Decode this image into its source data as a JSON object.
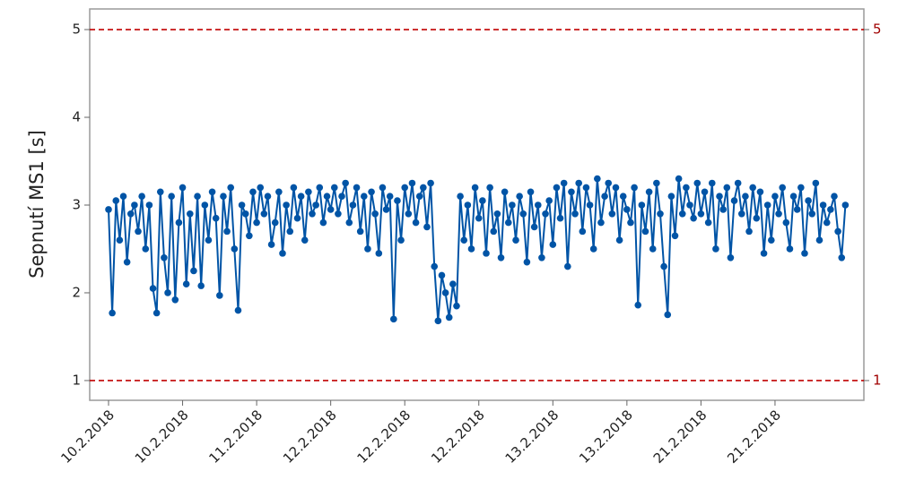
{
  "chart_data": {
    "type": "line",
    "y_label": "Sepnutí MS1 [s]",
    "color": "#0054a6",
    "ylim": [
      0.775,
      5.235
    ],
    "yticks": [
      1,
      2,
      3,
      4,
      5
    ],
    "hlines": [
      5,
      1
    ],
    "categories": [
      "10.2.2018",
      null,
      null,
      null,
      null,
      null,
      null,
      null,
      null,
      null,
      null,
      null,
      null,
      null,
      null,
      null,
      null,
      null,
      null,
      null,
      "10.2.2018",
      null,
      null,
      null,
      null,
      null,
      null,
      null,
      null,
      null,
      null,
      null,
      null,
      null,
      null,
      null,
      null,
      null,
      null,
      null,
      "11.2.2018",
      null,
      null,
      null,
      null,
      null,
      null,
      null,
      null,
      null,
      null,
      null,
      null,
      null,
      null,
      null,
      null,
      null,
      null,
      null,
      "12.2.2018",
      null,
      null,
      null,
      null,
      null,
      null,
      null,
      null,
      null,
      null,
      null,
      null,
      null,
      null,
      null,
      null,
      null,
      null,
      null,
      "12.2.2018",
      null,
      null,
      null,
      null,
      null,
      null,
      null,
      null,
      null,
      null,
      null,
      null,
      null,
      null,
      null,
      null,
      null,
      null,
      null,
      "12.2.2018",
      null,
      null,
      null,
      null,
      null,
      null,
      null,
      null,
      null,
      null,
      null,
      null,
      null,
      null,
      null,
      null,
      null,
      null,
      null,
      "13.2.2018",
      null,
      null,
      null,
      null,
      null,
      null,
      null,
      null,
      null,
      null,
      null,
      null,
      null,
      null,
      null,
      null,
      null,
      null,
      null,
      "13.2.2018",
      null,
      null,
      null,
      null,
      null,
      null,
      null,
      null,
      null,
      null,
      null,
      null,
      null,
      null,
      null,
      null,
      null,
      null,
      null,
      "21.2.2018",
      null,
      null,
      null,
      null,
      null,
      null,
      null,
      null,
      null,
      null,
      null,
      null,
      null,
      null,
      null,
      null,
      null,
      null,
      null,
      "21.2.2018",
      null,
      null,
      null,
      null,
      null,
      null,
      null,
      null,
      null,
      null,
      null,
      null,
      null,
      null,
      null,
      null,
      null,
      null,
      null
    ],
    "values": [
      2.95,
      1.77,
      3.05,
      2.6,
      3.1,
      2.35,
      2.9,
      3.0,
      2.7,
      3.1,
      2.5,
      3.0,
      2.05,
      1.77,
      3.15,
      2.4,
      2.0,
      3.1,
      1.92,
      2.8,
      3.2,
      2.1,
      2.9,
      2.25,
      3.1,
      2.08,
      3.0,
      2.6,
      3.15,
      2.85,
      1.97,
      3.1,
      2.7,
      3.2,
      2.5,
      1.8,
      3.0,
      2.9,
      2.65,
      3.15,
      2.8,
      3.2,
      2.9,
      3.1,
      2.55,
      2.8,
      3.15,
      2.45,
      3.0,
      2.7,
      3.2,
      2.85,
      3.1,
      2.6,
      3.15,
      2.9,
      3.0,
      3.2,
      2.8,
      3.1,
      2.95,
      3.2,
      2.9,
      3.1,
      3.25,
      2.8,
      3.0,
      3.2,
      2.7,
      3.1,
      2.5,
      3.15,
      2.9,
      2.45,
      3.2,
      2.95,
      3.1,
      1.7,
      3.05,
      2.6,
      3.2,
      2.9,
      3.25,
      2.8,
      3.1,
      3.2,
      2.75,
      3.25,
      2.3,
      1.68,
      2.2,
      2.0,
      1.72,
      2.1,
      1.85,
      3.1,
      2.6,
      3.0,
      2.5,
      3.2,
      2.85,
      3.05,
      2.45,
      3.2,
      2.7,
      2.9,
      2.4,
      3.15,
      2.8,
      3.0,
      2.6,
      3.1,
      2.9,
      2.35,
      3.15,
      2.75,
      3.0,
      2.4,
      2.9,
      3.05,
      2.55,
      3.2,
      2.85,
      3.25,
      2.3,
      3.15,
      2.9,
      3.25,
      2.7,
      3.2,
      3.0,
      2.5,
      3.3,
      2.8,
      3.1,
      3.25,
      2.9,
      3.2,
      2.6,
      3.1,
      2.95,
      2.8,
      3.2,
      1.86,
      3.0,
      2.7,
      3.15,
      2.5,
      3.25,
      2.9,
      2.3,
      1.75,
      3.1,
      2.65,
      3.3,
      2.9,
      3.2,
      3.0,
      2.85,
      3.25,
      2.9,
      3.15,
      2.8,
      3.25,
      2.5,
      3.1,
      2.95,
      3.2,
      2.4,
      3.05,
      3.25,
      2.9,
      3.1,
      2.7,
      3.2,
      2.85,
      3.15,
      2.45,
      3.0,
      2.6,
      3.1,
      2.9,
      3.2,
      2.8,
      2.5,
      3.1,
      2.95,
      3.2,
      2.45,
      3.05,
      2.9,
      3.25,
      2.6,
      3.0,
      2.8,
      2.95,
      3.1,
      2.7,
      2.4,
      3.0
    ]
  }
}
